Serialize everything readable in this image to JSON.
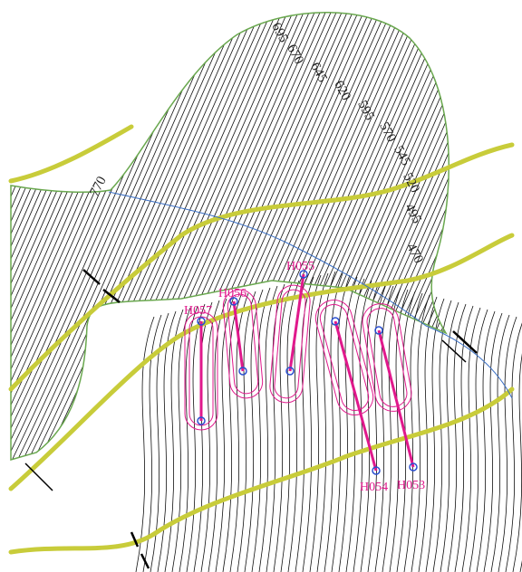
{
  "contour_labels": [
    695,
    670,
    645,
    620,
    595,
    570,
    545,
    520,
    495,
    470,
    770
  ],
  "wells": [
    {
      "label": "H057"
    },
    {
      "label": "H056"
    },
    {
      "label": "H055"
    },
    {
      "label": "H054"
    },
    {
      "label": "H053"
    }
  ]
}
